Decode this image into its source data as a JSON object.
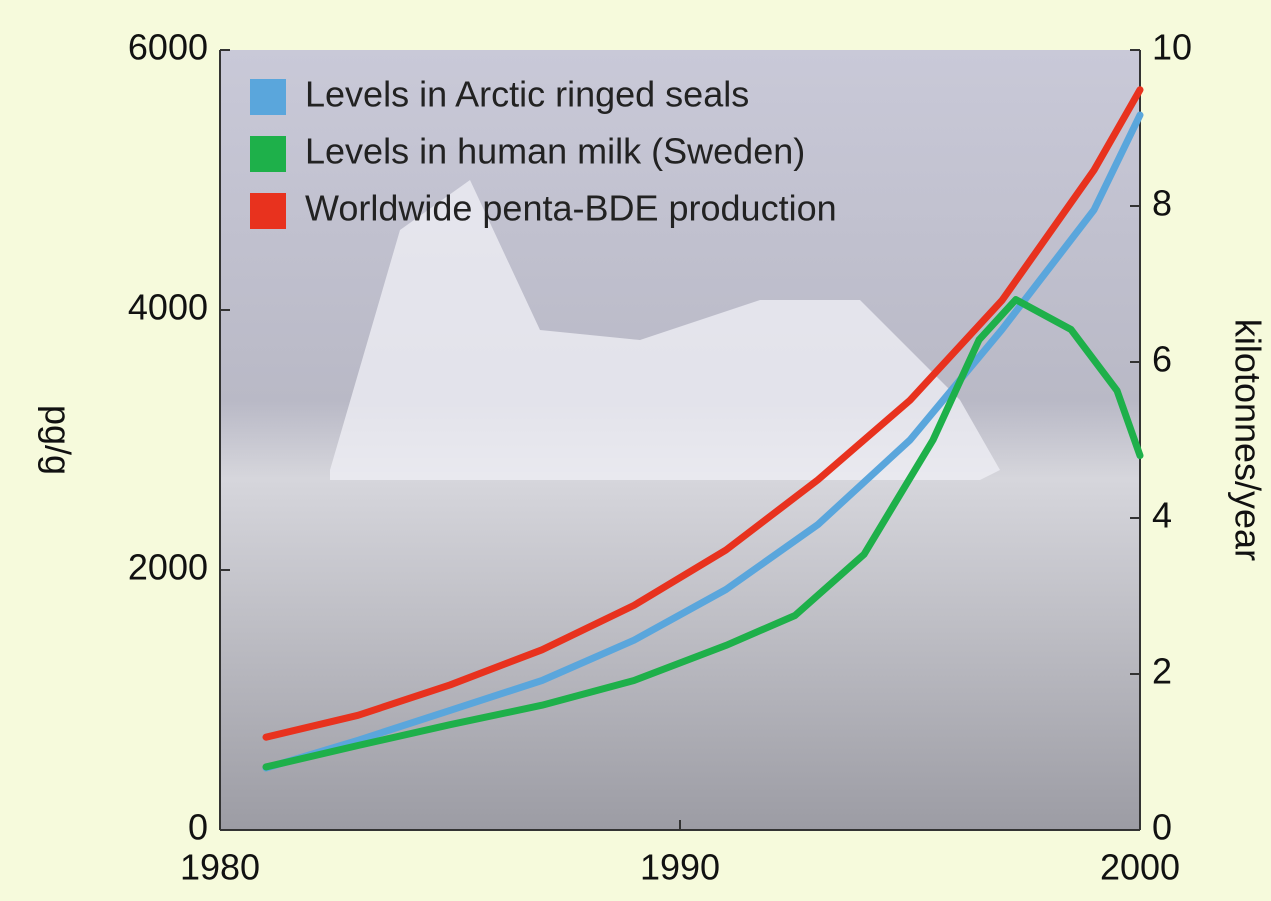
{
  "chart_data": {
    "type": "line",
    "y_label": "pg/g",
    "y2_label": "kilotonnes/year",
    "xlim": [
      1980,
      2000
    ],
    "xticks": [
      1980,
      1990,
      2000
    ],
    "ylim": [
      0,
      6000
    ],
    "yticks": [
      0,
      2000,
      4000,
      6000
    ],
    "y2lim": [
      0,
      10
    ],
    "y2ticks": [
      0,
      2,
      4,
      6,
      8,
      10
    ],
    "series": [
      {
        "name": "Levels in Arctic ringed seals",
        "color": "#5aa6dc",
        "x": [
          1981,
          1983,
          1985,
          1987,
          1989,
          1991,
          1993,
          1995,
          1997,
          1999,
          2000
        ],
        "values": [
          477,
          690,
          920,
          1150,
          1460,
          1850,
          2350,
          3000,
          3850,
          4770,
          5500
        ]
      },
      {
        "name": "Levels in human milk (Sweden)",
        "color": "#1eb04a",
        "x": [
          1981,
          1983,
          1985,
          1987,
          1989,
          1991,
          1992.5,
          1994,
          1995.5,
          1996.5,
          1997.3,
          1998.5,
          1999.5,
          2000
        ],
        "values": [
          485,
          650,
          810,
          960,
          1150,
          1420,
          1650,
          2120,
          3000,
          3770,
          4080,
          3850,
          3380,
          2880
        ]
      },
      {
        "name": "Worldwide penta-BDE production",
        "color": "#e8321e",
        "axis": "y2",
        "x": [
          1981,
          1983,
          1985,
          1987,
          1989,
          1991,
          1993,
          1995,
          1997,
          1999,
          2000
        ],
        "values": [
          1.19,
          1.47,
          1.86,
          2.31,
          2.88,
          3.59,
          4.49,
          5.51,
          6.79,
          8.46,
          9.49
        ]
      }
    ]
  }
}
